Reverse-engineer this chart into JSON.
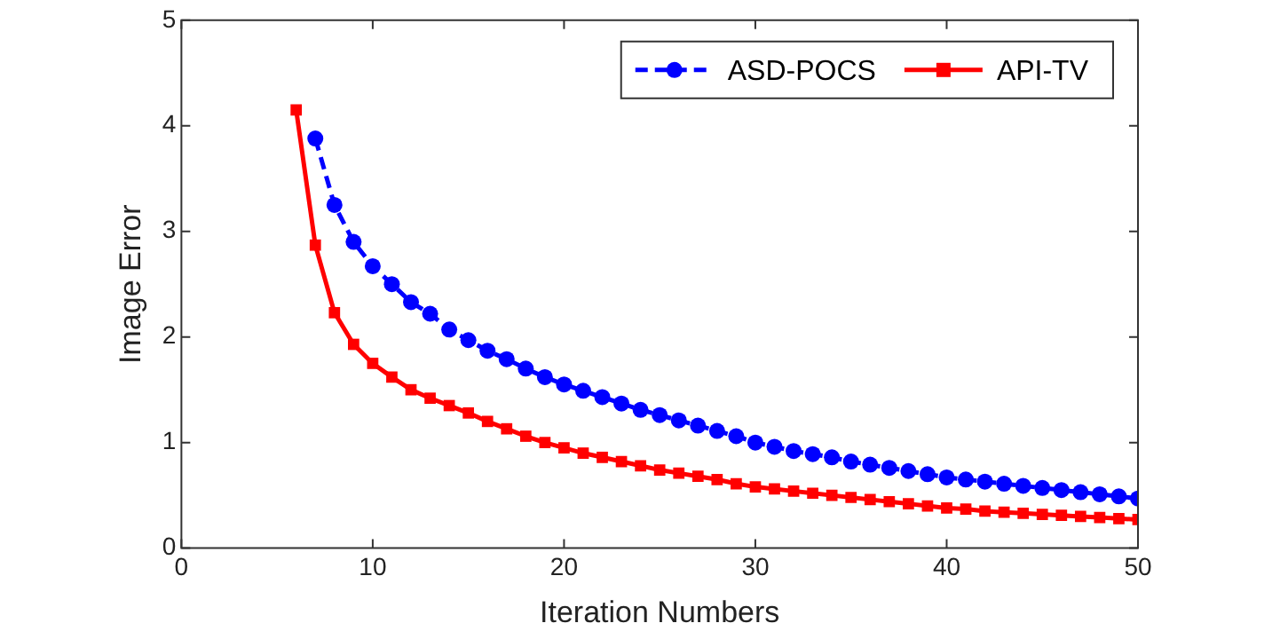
{
  "chart_data": {
    "type": "line",
    "xlabel": "Iteration Numbers",
    "ylabel": "Image Error",
    "xlim": [
      0,
      50
    ],
    "ylim": [
      0,
      5
    ],
    "xticks": [
      0,
      10,
      20,
      30,
      40,
      50
    ],
    "yticks": [
      0,
      1,
      2,
      3,
      4,
      5
    ],
    "grid": false,
    "legend": "top right",
    "series": [
      {
        "name": "ASD-POCS",
        "color": "#0000ff",
        "marker": "circle",
        "line_style": "dashed",
        "x": [
          7,
          8,
          9,
          10,
          11,
          12,
          13,
          14,
          15,
          16,
          17,
          18,
          19,
          20,
          21,
          22,
          23,
          24,
          25,
          26,
          27,
          28,
          29,
          30,
          31,
          32,
          33,
          34,
          35,
          36,
          37,
          38,
          39,
          40,
          41,
          42,
          43,
          44,
          45,
          46,
          47,
          48,
          49,
          50
        ],
        "values": [
          3.88,
          3.25,
          2.9,
          2.67,
          2.5,
          2.33,
          2.22,
          2.07,
          1.97,
          1.87,
          1.79,
          1.7,
          1.62,
          1.55,
          1.49,
          1.43,
          1.37,
          1.31,
          1.26,
          1.21,
          1.16,
          1.11,
          1.06,
          1.0,
          0.96,
          0.92,
          0.89,
          0.86,
          0.82,
          0.79,
          0.76,
          0.73,
          0.7,
          0.67,
          0.65,
          0.63,
          0.61,
          0.59,
          0.57,
          0.55,
          0.53,
          0.51,
          0.49,
          0.47
        ]
      },
      {
        "name": "API-TV",
        "color": "#ff0000",
        "marker": "square",
        "line_style": "solid",
        "x": [
          6,
          7,
          8,
          9,
          10,
          11,
          12,
          13,
          14,
          15,
          16,
          17,
          18,
          19,
          20,
          21,
          22,
          23,
          24,
          25,
          26,
          27,
          28,
          29,
          30,
          31,
          32,
          33,
          34,
          35,
          36,
          37,
          38,
          39,
          40,
          41,
          42,
          43,
          44,
          45,
          46,
          47,
          48,
          49,
          50
        ],
        "values": [
          4.15,
          2.87,
          2.23,
          1.93,
          1.75,
          1.62,
          1.5,
          1.42,
          1.35,
          1.28,
          1.2,
          1.13,
          1.06,
          1.0,
          0.95,
          0.9,
          0.86,
          0.82,
          0.78,
          0.74,
          0.71,
          0.68,
          0.65,
          0.61,
          0.58,
          0.56,
          0.54,
          0.52,
          0.5,
          0.48,
          0.46,
          0.44,
          0.42,
          0.4,
          0.38,
          0.37,
          0.35,
          0.34,
          0.33,
          0.32,
          0.31,
          0.3,
          0.29,
          0.28,
          0.27
        ]
      }
    ]
  }
}
